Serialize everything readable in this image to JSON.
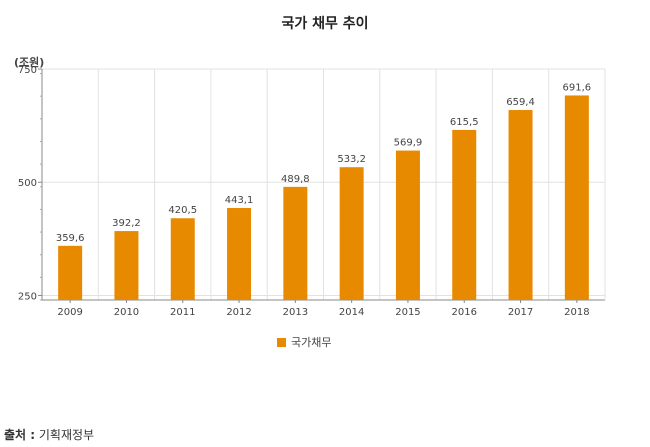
{
  "chart_data": {
    "type": "bar",
    "title": "국가 채무 추이",
    "unit": "(조원)",
    "categories": [
      "2009",
      "2010",
      "2011",
      "2012",
      "2013",
      "2014",
      "2015",
      "2016",
      "2017",
      "2018"
    ],
    "series": [
      {
        "name": "국가채무",
        "values": [
          359.6,
          392.2,
          420.5,
          443.1,
          489.8,
          533.2,
          569.9,
          615.5,
          659.4,
          691.6
        ],
        "labels": [
          "359,6",
          "392,2",
          "420,5",
          "443,1",
          "489,8",
          "533,2",
          "569,9",
          "615,5",
          "659,4",
          "691,6"
        ],
        "color": "#e88a00"
      }
    ],
    "ylim": [
      240,
      750
    ],
    "yticks": [
      250,
      500,
      750
    ],
    "grid": true,
    "legend_position": "bottom"
  },
  "source": {
    "label": "출처 :",
    "text": "기획재정부"
  }
}
